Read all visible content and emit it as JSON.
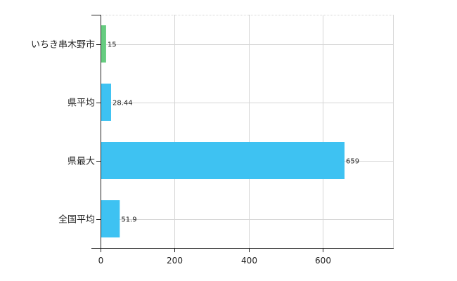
{
  "chart_data": {
    "type": "bar",
    "orientation": "horizontal",
    "categories": [
      "いちき串木野市",
      "県平均",
      "県最大",
      "全国平均"
    ],
    "values": [
      15,
      28.44,
      659,
      51.9
    ],
    "value_labels": [
      "15",
      "28.44",
      "659",
      "51.9"
    ],
    "bar_colors": [
      "#66cc80",
      "#3ec2f2",
      "#3ec2f2",
      "#3ec2f2"
    ],
    "xlim": [
      0,
      790
    ],
    "x_ticks": [
      0,
      200,
      400,
      600
    ],
    "x_tick_labels": [
      "0",
      "200",
      "400",
      "600"
    ],
    "grid": true,
    "title": "",
    "xlabel": "",
    "ylabel": ""
  }
}
